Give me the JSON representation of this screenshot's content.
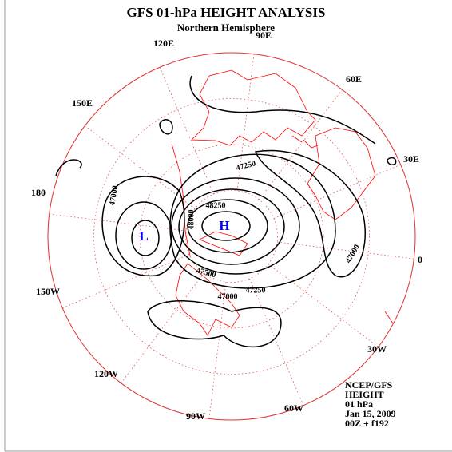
{
  "header": {
    "title": "GFS 01-hPa HEIGHT ANALYSIS",
    "subtitle": "Northern Hemisphere"
  },
  "longitude_labels": [
    "90E",
    "60E",
    "30E",
    "0",
    "30W",
    "60W",
    "90W",
    "120W",
    "150W",
    "180",
    "150E",
    "120E"
  ],
  "contour_labels": [
    "47250",
    "47000",
    "48250",
    "48000",
    "47500",
    "47000",
    "47250",
    "47000"
  ],
  "pressure_centers": [
    "H",
    "L"
  ],
  "info": [
    "NCEP/GFS",
    "HEIGHT",
    "01 hPa",
    "Jan 15, 2009",
    "00Z + f192"
  ]
}
